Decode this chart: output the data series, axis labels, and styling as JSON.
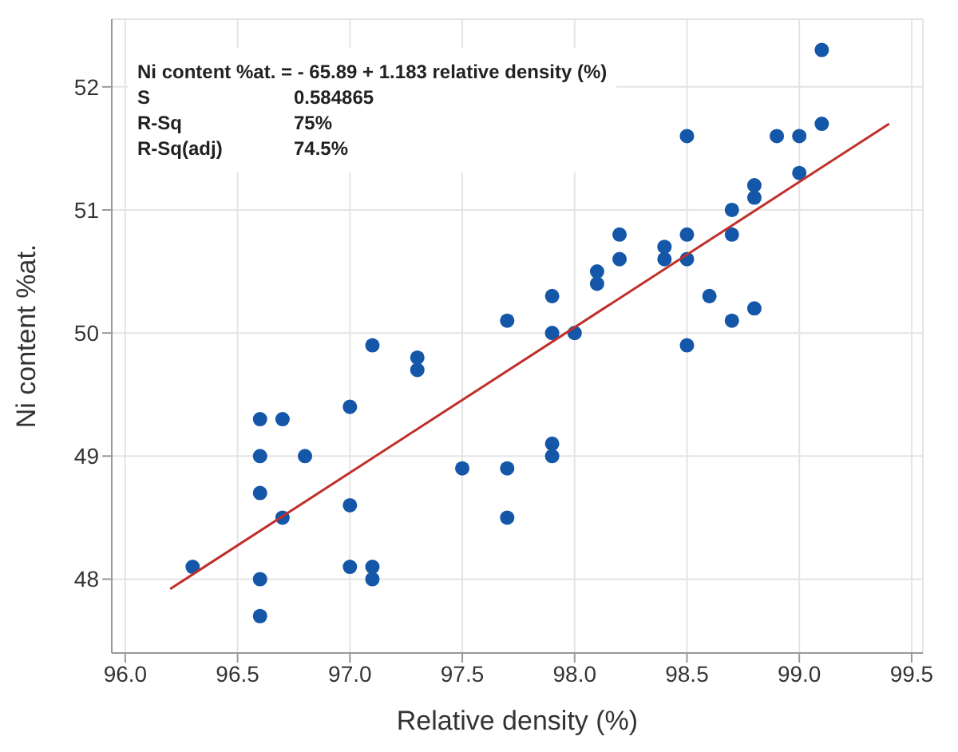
{
  "chart_data": {
    "type": "scatter",
    "xlabel": "Relative density (%)",
    "ylabel": "Ni content %at.",
    "xlim": [
      95.94,
      99.55
    ],
    "xticks": [
      {
        "value": 96,
        "label": "96.0"
      },
      {
        "value": 96.5,
        "label": "96.5"
      },
      {
        "value": 97,
        "label": "97.0"
      },
      {
        "value": 97.5,
        "label": "97.5"
      },
      {
        "value": 98,
        "label": "98.0"
      },
      {
        "value": 98.5,
        "label": "98.5"
      },
      {
        "value": 99,
        "label": "99.0"
      },
      {
        "value": 99.5,
        "label": "99.5"
      }
    ],
    "ylim": [
      47.4,
      52.55
    ],
    "yticks": [
      48,
      49,
      50,
      51,
      52
    ],
    "grid": true,
    "legend": false,
    "marker": "circle",
    "annotations": [
      "Ni content %at. = - 65.89 + 1.183 relative density (%)",
      "S",
      "0.584865",
      "R-Sq",
      "75%",
      "R-Sq(adj)",
      "74.5%"
    ],
    "series": [
      {
        "color": "#1456a8",
        "x": [
          96.3,
          96.6,
          96.6,
          96.6,
          96.6,
          96.6,
          96.7,
          96.7,
          96.8,
          97.0,
          97.0,
          97.0,
          97.1,
          97.1,
          97.1,
          97.3,
          97.3,
          97.5,
          97.7,
          97.7,
          97.7,
          97.9,
          97.9,
          97.9,
          97.9,
          98.0,
          98.1,
          98.1,
          98.2,
          98.2,
          98.4,
          98.4,
          98.5,
          98.5,
          98.5,
          98.5,
          98.6,
          98.7,
          98.7,
          98.7,
          98.8,
          98.8,
          98.8,
          98.9,
          99.0,
          99.0,
          99.1,
          99.1
        ],
        "values": [
          48.1,
          47.7,
          48.0,
          48.7,
          49.0,
          49.3,
          49.3,
          48.5,
          49.0,
          49.4,
          48.6,
          48.1,
          49.9,
          48.1,
          48.0,
          49.8,
          49.7,
          48.9,
          50.1,
          48.9,
          48.5,
          50.3,
          50.0,
          49.1,
          49.0,
          50.0,
          50.5,
          50.4,
          50.8,
          50.6,
          50.7,
          50.6,
          51.6,
          50.8,
          50.6,
          49.9,
          50.3,
          51.0,
          50.8,
          50.1,
          51.2,
          51.1,
          50.2,
          51.6,
          51.6,
          51.3,
          52.3,
          51.7
        ]
      },
      {
        "type": "line",
        "color": "#c0302b",
        "line_style": "solid",
        "marker": "none",
        "x": [
          96.2,
          99.4
        ],
        "values": [
          47.92,
          51.7
        ]
      }
    ]
  }
}
